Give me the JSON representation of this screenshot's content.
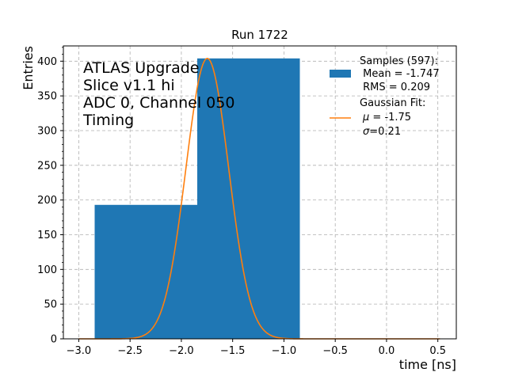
{
  "chart_data": {
    "type": "bar",
    "title": "Run 1722",
    "xlabel": "time [ns]",
    "ylabel": "Entries",
    "xlim": [
      -3.15,
      0.68
    ],
    "ylim": [
      0,
      422
    ],
    "grid": true,
    "legend_position": "top-right",
    "x_ticks": [
      -3.0,
      -2.5,
      -2.0,
      -1.5,
      -1.0,
      -0.5,
      0.0,
      0.5
    ],
    "x_tick_labels": [
      "−3.0",
      "−2.5",
      "−2.0",
      "−1.5",
      "−1.0",
      "−0.5",
      "0.0",
      "0.5"
    ],
    "y_ticks": [
      0,
      50,
      100,
      150,
      200,
      250,
      300,
      350,
      400
    ],
    "y_tick_labels": [
      "0",
      "50",
      "100",
      "150",
      "200",
      "250",
      "300",
      "350",
      "400"
    ],
    "histogram": {
      "name": "Samples (597):",
      "color": "#1f77b4",
      "bins": [
        {
          "x0": -2.845,
          "x1": -1.845,
          "count": 193
        },
        {
          "x0": -1.845,
          "x1": -0.845,
          "count": 404
        }
      ]
    },
    "fit": {
      "name": "Gaussian Fit:",
      "color": "#ff7f0e",
      "mu": -1.747,
      "sigma": 0.209,
      "amplitude": 404,
      "x_range": [
        -3.0,
        0.52
      ]
    },
    "annotation_lines": [
      "ATLAS Upgrade",
      "Slice v1.1 hi",
      "ADC 0, Channel 050",
      "Timing"
    ],
    "legend": {
      "samples_title": "Samples (597):",
      "samples_mean": " Mean = -1.747",
      "samples_rms": " RMS = 0.209",
      "fit_title": "Gaussian Fit:",
      "fit_mu_symbol": "μ",
      "fit_mu_value": " = -1.75",
      "fit_sigma_symbol": "σ",
      "fit_sigma_value": "=0.21"
    }
  }
}
